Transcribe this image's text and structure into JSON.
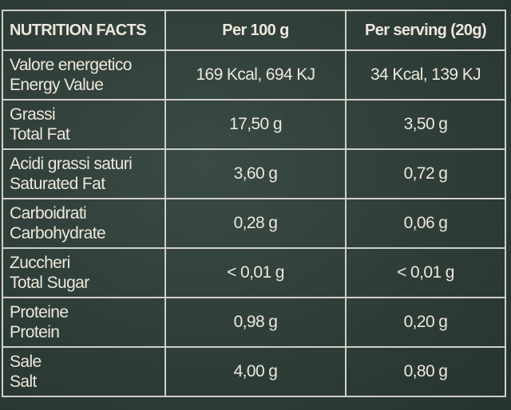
{
  "table": {
    "header": [
      "NUTRITION FACTS",
      "Per 100 g",
      "Per serving (20g)"
    ],
    "rows": [
      [
        "Valore energetico",
        "Energy Value",
        "169 Kcal, 694 KJ",
        "34 Kcal, 139 KJ"
      ],
      [
        "Grassi",
        "Total Fat",
        "17,50 g",
        "3,50 g"
      ],
      [
        "Acidi grassi saturi",
        "Saturated Fat",
        "3,60 g",
        "0,72 g"
      ],
      [
        "Carboidrati",
        "Carbohydrate",
        "0,28 g",
        "0,06 g"
      ],
      [
        "Zuccheri",
        "Total Sugar",
        "< 0,01 g",
        "< 0,01 g"
      ],
      [
        "Proteine",
        "Protein",
        "0,98 g",
        "0,20 g"
      ],
      [
        "Sale",
        "Salt",
        "4,00 g",
        "0,80 g"
      ]
    ]
  }
}
